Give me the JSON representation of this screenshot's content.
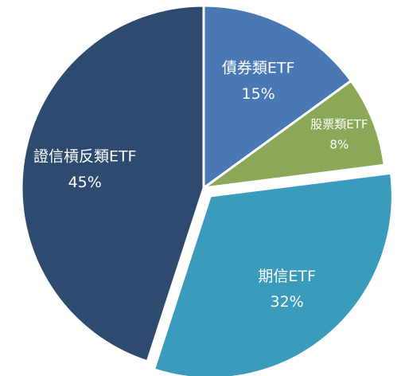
{
  "chart_data": {
    "type": "pie",
    "categories": [
      "債券類ETF",
      "股票類ETF",
      "期信ETF",
      "證信槓反類ETF"
    ],
    "values": [
      15,
      8,
      32,
      45
    ],
    "value_labels": [
      "15%",
      "8%",
      "32%",
      "45%"
    ],
    "colors": [
      "#4a78b4",
      "#8ba758",
      "#3b9bbd",
      "#2e4a6f"
    ],
    "exploded": [
      false,
      false,
      true,
      false
    ]
  }
}
